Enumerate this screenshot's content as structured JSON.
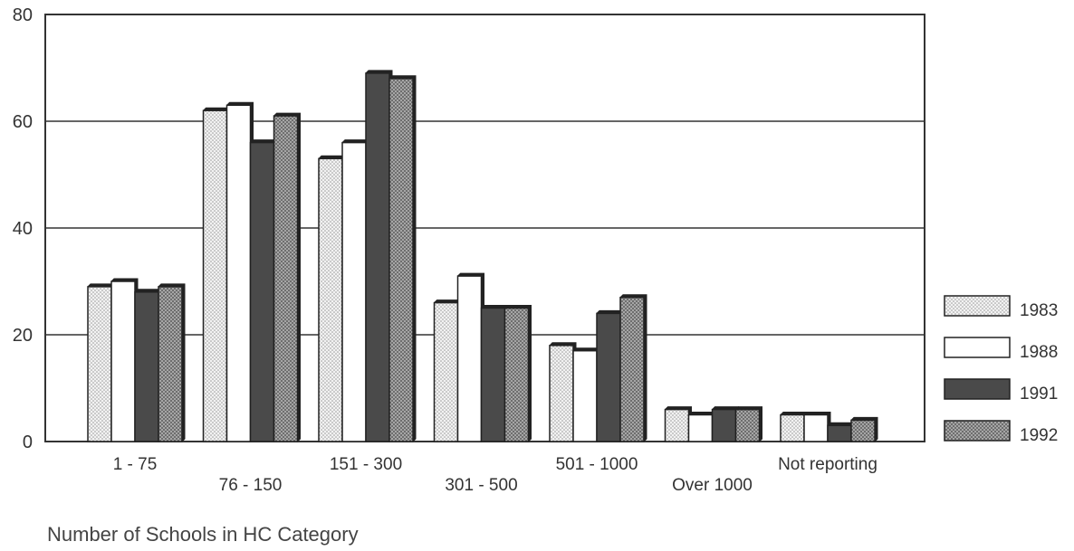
{
  "chart_data": {
    "type": "bar",
    "title": "",
    "xlabel": "Number of Schools in HC Category",
    "ylabel": "",
    "ylim": [
      0,
      80
    ],
    "yticks": [
      0,
      20,
      40,
      60,
      80
    ],
    "grid": true,
    "legend_position": "right",
    "categories": [
      "1 - 75",
      "76 - 150",
      "151 - 300",
      "301 - 500",
      "501 - 1000",
      "Over 1000",
      "Not reporting"
    ],
    "series": [
      {
        "name": "1983",
        "values": [
          29,
          62,
          53,
          26,
          18,
          6,
          5
        ],
        "color": "#ececec",
        "pattern": "light-dots"
      },
      {
        "name": "1988",
        "values": [
          30,
          63,
          56,
          31,
          17,
          5,
          5
        ],
        "color": "#ffffff",
        "pattern": "none"
      },
      {
        "name": "1991",
        "values": [
          28,
          56,
          69,
          25,
          24,
          6,
          3
        ],
        "color": "#4a4a4a",
        "pattern": "solid"
      },
      {
        "name": "1992",
        "values": [
          29,
          61,
          68,
          25,
          27,
          6,
          4
        ],
        "color": "#8c8c8c",
        "pattern": "dark-dots"
      }
    ]
  }
}
